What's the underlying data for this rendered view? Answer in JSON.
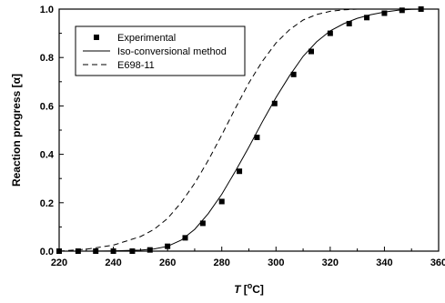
{
  "chart_data": {
    "type": "line",
    "xlabel_italic": "T",
    "xlabel_unit_open": " [",
    "xlabel_unit_sup": "o",
    "xlabel_unit_close": "C]",
    "ylabel": "Reaction progress [α]",
    "xlim": [
      220,
      360
    ],
    "ylim": [
      0,
      1.0
    ],
    "x_ticks": [
      220,
      240,
      260,
      280,
      300,
      320,
      340,
      360
    ],
    "y_ticks": [
      0.0,
      0.2,
      0.4,
      0.6,
      0.8,
      1.0
    ],
    "x_tick_labels": [
      "220",
      "240",
      "260",
      "280",
      "300",
      "320",
      "340",
      "360"
    ],
    "y_tick_labels": [
      "0.0",
      "0.2",
      "0.4",
      "0.6",
      "0.8",
      "1.0"
    ],
    "grid": false,
    "legend_position": "top-left",
    "series": [
      {
        "name": "Experimental",
        "style": "square-markers",
        "color": "#000000",
        "x": [
          220,
          227,
          233.5,
          240,
          247,
          253.5,
          260,
          266.5,
          273,
          280,
          286.5,
          293,
          299.5,
          306.5,
          313,
          320,
          327,
          333.5,
          340,
          346.5,
          353.5
        ],
        "y": [
          0.0,
          0.0,
          0.0,
          0.0,
          0.0,
          0.005,
          0.02,
          0.055,
          0.115,
          0.205,
          0.33,
          0.47,
          0.61,
          0.73,
          0.825,
          0.9,
          0.94,
          0.965,
          0.983,
          0.995,
          1.0
        ]
      },
      {
        "name": "Iso-conversional method",
        "style": "solid",
        "color": "#000000",
        "x": [
          220,
          230,
          240,
          250,
          255,
          260,
          265,
          270,
          275,
          280,
          285,
          290,
          295,
          300,
          305,
          310,
          315,
          320,
          325,
          330,
          335,
          340,
          345,
          350,
          355
        ],
        "y": [
          0.0,
          0.0,
          0.001,
          0.004,
          0.009,
          0.02,
          0.045,
          0.09,
          0.155,
          0.235,
          0.33,
          0.43,
          0.535,
          0.635,
          0.725,
          0.805,
          0.865,
          0.91,
          0.94,
          0.962,
          0.977,
          0.988,
          0.995,
          0.999,
          1.0
        ]
      },
      {
        "name": "E698-11",
        "style": "dashed",
        "color": "#000000",
        "x": [
          220,
          230,
          240,
          250,
          255,
          260,
          265,
          270,
          275,
          280,
          285,
          290,
          295,
          300,
          305,
          310,
          315,
          320,
          325,
          330,
          340,
          350,
          355
        ],
        "y": [
          0.0,
          0.008,
          0.025,
          0.06,
          0.09,
          0.135,
          0.2,
          0.28,
          0.375,
          0.48,
          0.59,
          0.695,
          0.785,
          0.86,
          0.915,
          0.955,
          0.978,
          0.991,
          0.997,
          1.0,
          1.0,
          1.0,
          1.0
        ]
      }
    ]
  }
}
